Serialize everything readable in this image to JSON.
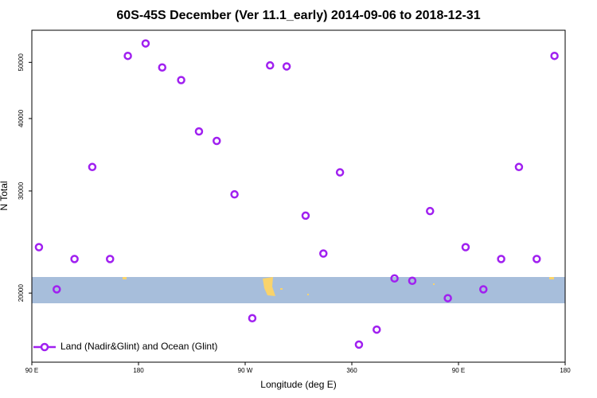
{
  "chart_data": {
    "type": "scatter",
    "title": "60S-45S December (Ver 11.1_early)   2014-09-06 to 2018-12-31",
    "x_label": "Longitude (deg E)",
    "y_label": "N Total",
    "x": [
      96,
      111,
      126,
      141,
      156,
      171,
      186,
      200,
      216,
      231,
      246,
      261,
      276,
      291,
      305,
      321,
      336,
      350,
      366,
      381,
      396,
      411,
      426,
      441,
      456,
      471,
      486,
      501,
      516,
      531
    ],
    "series": [
      {
        "name": "Land (Nadir&Glint) and Ocean (Glint)",
        "color": "#a020f0",
        "values": [
          24000,
          20300,
          22900,
          33000,
          22900,
          51300,
          53900,
          49000,
          46600,
          38000,
          36600,
          29600,
          18100,
          49400,
          49200,
          27200,
          23400,
          32300,
          16300,
          17300,
          21200,
          21000,
          27700,
          19600,
          24000,
          20300,
          22900,
          33000,
          22900,
          51300
        ]
      }
    ],
    "xlim": [
      90,
      540
    ],
    "ylim": [
      15200,
      56800
    ],
    "log_y": true,
    "xticks": [
      {
        "value": 90,
        "label": "90 E"
      },
      180,
      {
        "value": 270,
        "label": "90 W"
      },
      360,
      {
        "value": 450,
        "label": "90 E"
      },
      {
        "value": 540,
        "label": "180"
      }
    ],
    "yticks": [
      20000,
      30000,
      40000,
      50000
    ],
    "legend": "bottom-left"
  }
}
